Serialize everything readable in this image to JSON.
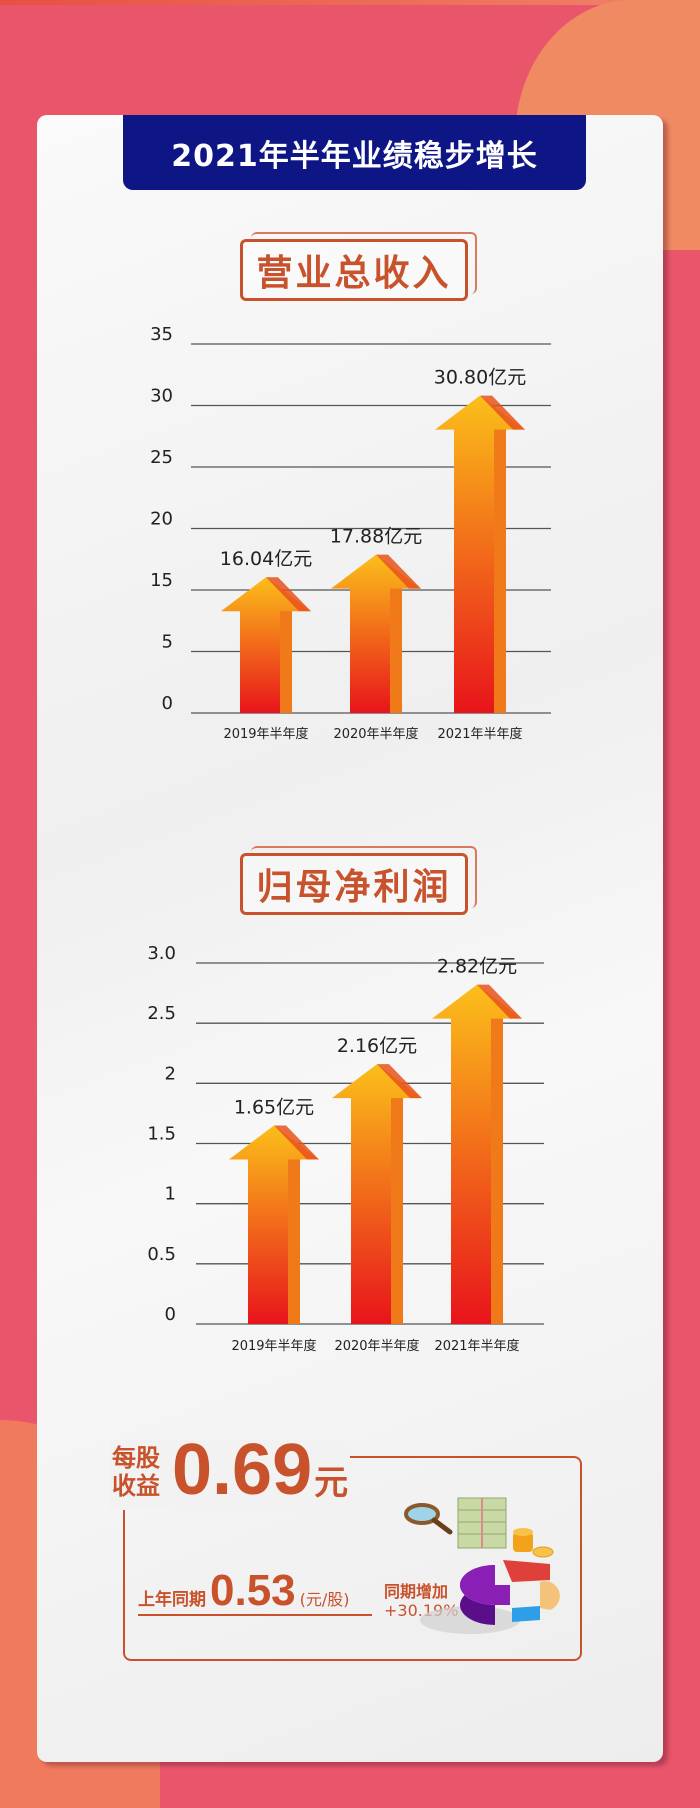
{
  "page_title": "2021年半年业绩稳步增长",
  "colors": {
    "background": "#e9566b",
    "banner": "#0e1685",
    "accent": "#c8522c",
    "arrow_top": "#fbbf1a",
    "arrow_bottom": "#e8141b"
  },
  "chart_data": [
    {
      "type": "bar",
      "title": "营业总收入",
      "categories": [
        "2019年半年度",
        "2020年半年度",
        "2021年半年度"
      ],
      "values": [
        16.04,
        17.88,
        30.8
      ],
      "data_labels": [
        "16.04亿元",
        "17.88亿元",
        "30.80亿元"
      ],
      "yticks": [
        "0",
        "5",
        "15",
        "20",
        "25",
        "30",
        "35"
      ],
      "ylim": [
        0,
        35
      ],
      "grid": true,
      "mark": "arrow"
    },
    {
      "type": "bar",
      "title": "归母净利润",
      "categories": [
        "2019年半年度",
        "2020年半年度",
        "2021年半年度"
      ],
      "values": [
        1.65,
        2.16,
        2.82
      ],
      "data_labels": [
        "1.65亿元",
        "2.16亿元",
        "2.82亿元"
      ],
      "yticks": [
        "0",
        "0.5",
        "1",
        "1.5",
        "2",
        "2.5",
        "3.0"
      ],
      "ylim": [
        0,
        3.0
      ],
      "grid": true,
      "mark": "arrow"
    }
  ],
  "eps": {
    "label": "每股收益",
    "value": "0.69",
    "unit": "元",
    "prev_label": "上年同期",
    "prev_value": "0.53",
    "prev_unit": "(元/股)",
    "increase_label": "同期增加",
    "increase_value": "+30.19%"
  }
}
